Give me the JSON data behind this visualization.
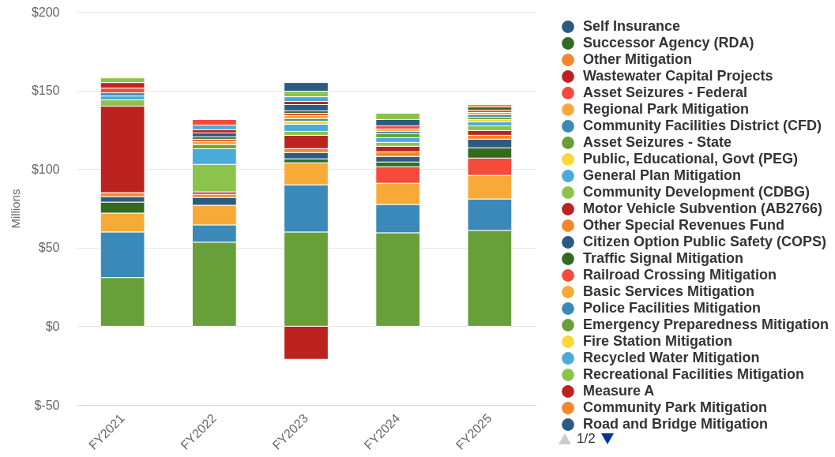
{
  "chart_data": {
    "type": "bar",
    "stacked": true,
    "ylabel": "Millions",
    "categories": [
      "FY2021",
      "FY2022",
      "FY2023",
      "FY2024",
      "FY2025"
    ],
    "series": [
      {
        "color": "#689f38",
        "values": [
          31,
          53.5,
          60,
          59.5,
          61
        ]
      },
      {
        "color": "#3a89b8",
        "values": [
          29,
          11,
          30,
          18,
          20
        ]
      },
      {
        "color": "#f8aa38",
        "values": [
          12,
          12.5,
          14,
          13.5,
          15
        ]
      },
      {
        "color": "#f64a3a",
        "values": [
          null,
          null,
          null,
          10.5,
          11
        ]
      },
      {
        "color": "#346a1f",
        "values": [
          7,
          null,
          2.5,
          3,
          6.5
        ]
      },
      {
        "name": "Road and Bridge Mitigation",
        "color": "#2b5b82",
        "values": [
          3.5,
          5,
          4,
          3.5,
          5.5
        ]
      },
      {
        "name": "Community Park Mitigation",
        "color": "#f5862a",
        "values": [
          2.5,
          2,
          2.5,
          3,
          2.5
        ]
      },
      {
        "name": "Measure A",
        "color": "#bc2320",
        "values": [
          55,
          1.5,
          8.5,
          3.5,
          3
        ]
      },
      {
        "name": "Recreational Facilities Mitigation",
        "color": "#8cc34b",
        "values": [
          4,
          17.5,
          2.5,
          2.5,
          3
        ]
      },
      {
        "name": "Recycled Water Mitigation",
        "color": "#48abd9",
        "values": [
          2.5,
          10,
          4.5,
          3,
          2.5
        ]
      },
      {
        "name": "Fire Station Mitigation",
        "color": "#fbd738",
        "values": [
          null,
          null,
          2,
          null,
          1.5
        ]
      },
      {
        "name": "Emergency Preparedness Mitigation",
        "color": "#689f38",
        "values": [
          null,
          2.5,
          null,
          2.5,
          1.5
        ]
      },
      {
        "name": "Police Facilities Mitigation",
        "color": "#3a89b8",
        "values": [
          2,
          null,
          1.5,
          1.5,
          1.5
        ]
      },
      {
        "name": "Basic Services Mitigation",
        "color": "#f8aa38",
        "values": [
          null,
          2,
          2,
          1.5,
          1.5
        ]
      },
      {
        "name": "Railroad Crossing Mitigation",
        "color": "#f64a3a",
        "values": [
          3,
          1.5,
          1.5,
          2,
          1.5
        ]
      },
      {
        "name": "Traffic Signal Mitigation",
        "color": "#346a1f",
        "values": [
          null,
          1.5,
          1.5,
          null,
          2
        ]
      },
      {
        "name": "Citizen Option Public Safety (COPS)",
        "color": "#2b5b82",
        "values": [
          null,
          2.5,
          4,
          4,
          null
        ]
      },
      {
        "name": "Other Special Revenues Fund",
        "color": "#f5862a",
        "values": [
          null,
          null,
          null,
          null,
          1.5
        ]
      },
      {
        "name": "Motor Vehicle Subvention (AB2766)",
        "color": "#bc2320",
        "values": [
          3.5,
          2,
          2,
          null,
          null
        ]
      },
      {
        "name": "Community Development (CDBG)",
        "color": "#8cc34b",
        "values": [
          3,
          null,
          null,
          4,
          null
        ]
      },
      {
        "name": "General Plan Mitigation",
        "color": "#48abd9",
        "values": [
          null,
          3,
          3,
          null,
          null
        ]
      },
      {
        "color": "#8cc34b",
        "values": [
          null,
          null,
          3.5,
          null,
          null
        ]
      },
      {
        "name": "Public, Educational, Govt (PEG)",
        "color": "#fbd738",
        "values": [
          null,
          null,
          null,
          null,
          null
        ]
      },
      {
        "name": "Asset Seizures - State",
        "color": "#689f38",
        "values": [
          null,
          null,
          null,
          null,
          null
        ]
      },
      {
        "name": "Community Facilities District (CFD)",
        "color": "#3a89b8",
        "values": [
          null,
          null,
          null,
          null,
          null
        ]
      },
      {
        "name": "Regional Park Mitigation",
        "color": "#f8aa38",
        "values": [
          null,
          null,
          null,
          null,
          null
        ]
      },
      {
        "name": "Asset Seizures - Federal",
        "color": "#f64a3a",
        "values": [
          null,
          3.5,
          null,
          null,
          null
        ]
      },
      {
        "name": "Wastewater Capital Projects",
        "color": "#bc2320",
        "values": [
          null,
          null,
          -21,
          null,
          null
        ]
      },
      {
        "name": "Other Mitigation",
        "color": "#f5862a",
        "values": [
          null,
          null,
          null,
          null,
          null
        ]
      },
      {
        "name": "Successor Agency (RDA)",
        "color": "#346a1f",
        "values": [
          null,
          null,
          null,
          null,
          null
        ]
      },
      {
        "name": "Self Insurance",
        "color": "#2b5b82",
        "values": [
          null,
          null,
          5.5,
          null,
          null
        ]
      }
    ],
    "ylim": [
      -50,
      200
    ],
    "yticks": [
      {
        "value": -50,
        "label": "$-50"
      },
      {
        "value": 0,
        "label": "$0"
      },
      {
        "value": 50,
        "label": "$50"
      },
      {
        "value": 100,
        "label": "$100"
      },
      {
        "value": 150,
        "label": "$150"
      },
      {
        "value": 200,
        "label": "$200"
      }
    ],
    "grid": "y",
    "legend": "right",
    "annotations": [
      "1/2"
    ]
  }
}
